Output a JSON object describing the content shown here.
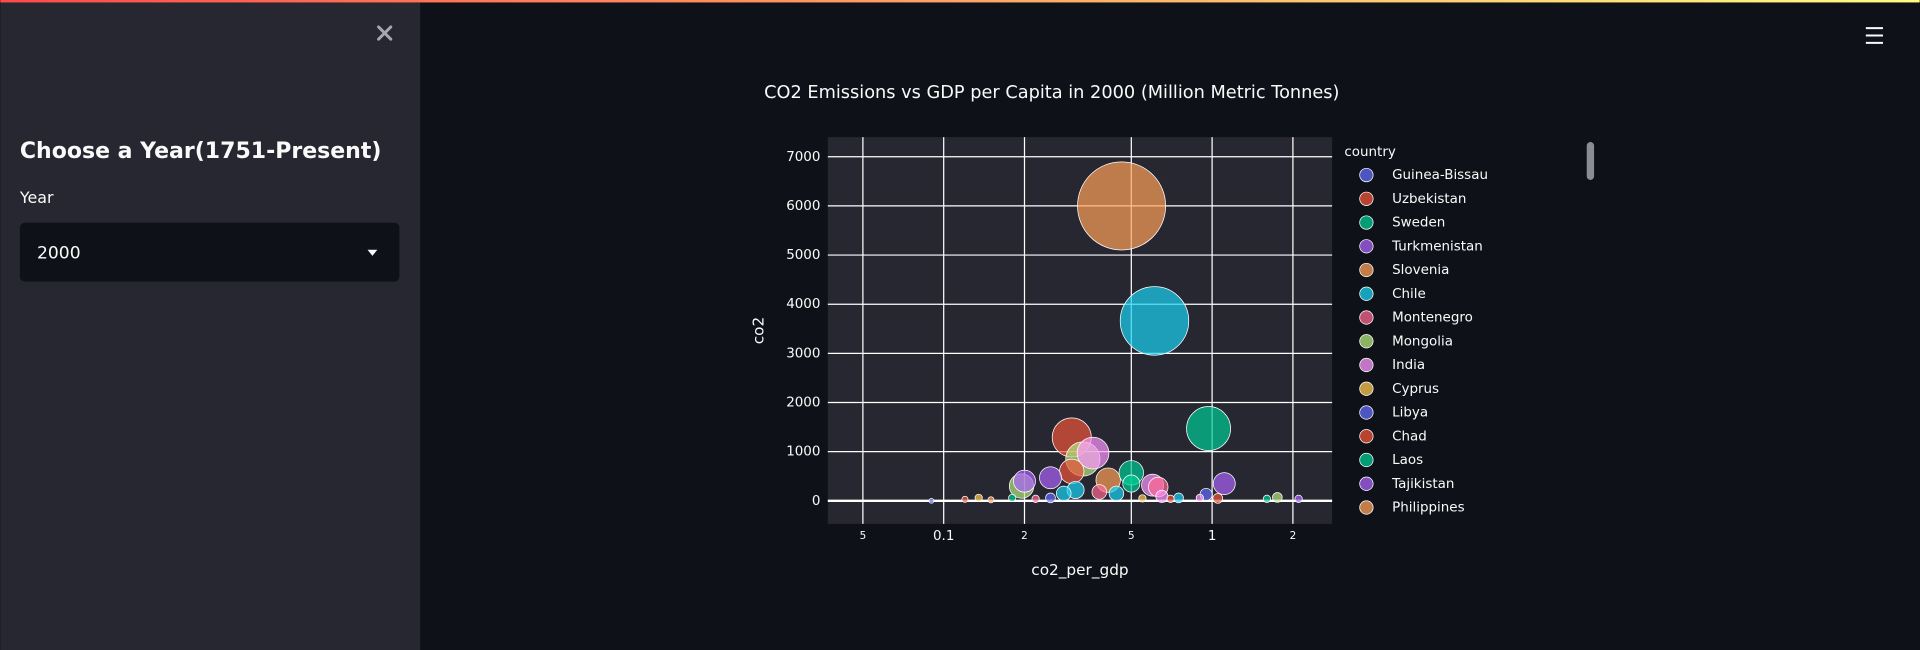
{
  "sidebar": {
    "heading": "Choose a Year(1751-Present)",
    "select_label": "Year",
    "select_value": "2000"
  },
  "chart_data": {
    "type": "scatter",
    "title": "CO2 Emissions vs GDP per Capita in 2000 (Million Metric Tonnes)",
    "x_label": "co2_per_gdp",
    "y_label": "co2",
    "x_log": true,
    "grid": true,
    "xlim": [
      0.037,
      2.8
    ],
    "xticks": [
      {
        "value": 0.05,
        "label": "5"
      },
      0.1,
      {
        "value": 0.2,
        "label": "2"
      },
      {
        "value": 0.5,
        "label": "5"
      },
      1,
      {
        "value": 2,
        "label": "2"
      }
    ],
    "ylim": [
      -470,
      7400
    ],
    "yticks": [
      0,
      1000,
      2000,
      3000,
      4000,
      5000,
      6000,
      7000
    ],
    "legend": {
      "title": "country",
      "items": [
        {
          "name": "Guinea-Bissau",
          "color": "#636efa"
        },
        {
          "name": "Uzbekistan",
          "color": "#EF553B"
        },
        {
          "name": "Sweden",
          "color": "#00cc96"
        },
        {
          "name": "Turkmenistan",
          "color": "#ab63fa"
        },
        {
          "name": "Slovenia",
          "color": "#FFA15A"
        },
        {
          "name": "Chile",
          "color": "#19d3f3"
        },
        {
          "name": "Montenegro",
          "color": "#FF6692"
        },
        {
          "name": "Mongolia",
          "color": "#B6E880"
        },
        {
          "name": "India",
          "color": "#FF97FF"
        },
        {
          "name": "Cyprus",
          "color": "#FECB52"
        },
        {
          "name": "Libya",
          "color": "#636efa"
        },
        {
          "name": "Chad",
          "color": "#EF553B"
        },
        {
          "name": "Laos",
          "color": "#00cc96"
        },
        {
          "name": "Tajikistan",
          "color": "#ab63fa"
        },
        {
          "name": "Philippines",
          "color": "#FFA15A"
        }
      ]
    },
    "x": [
      0.46,
      0.61,
      0.97,
      0.3,
      0.36,
      0.33,
      0.3,
      0.41,
      0.5,
      0.25,
      0.2,
      0.195,
      1.11,
      0.6,
      0.63,
      0.5,
      0.31,
      0.38,
      0.44,
      0.28,
      0.09,
      0.12,
      0.135,
      0.18,
      0.22,
      0.25,
      0.55,
      0.7,
      0.75,
      0.9,
      0.95,
      1.6,
      1.75,
      2.1,
      1.05,
      0.65,
      0.15
    ],
    "y": [
      6000,
      3660,
      1470,
      1290,
      970,
      850,
      600,
      420,
      570,
      470,
      400,
      300,
      350,
      320,
      280,
      350,
      220,
      180,
      150,
      150,
      0,
      30,
      60,
      60,
      40,
      60,
      50,
      40,
      60,
      60,
      130,
      40,
      70,
      40,
      50,
      90,
      20
    ],
    "sizes": [
      72,
      56,
      36,
      32,
      26,
      28,
      20,
      20,
      20,
      18,
      18,
      20,
      18,
      18,
      16,
      14,
      14,
      12,
      12,
      12,
      4,
      5,
      6,
      6,
      6,
      8,
      6,
      6,
      8,
      6,
      10,
      6,
      8,
      6,
      8,
      10,
      5
    ],
    "colors": [
      "#FFA15A",
      "#19d3f3",
      "#00cc96",
      "#EF553B",
      "#FF97FF",
      "#B6E880",
      "#EF553B",
      "#FFA15A",
      "#00cc96",
      "#ab63fa",
      "#ab63fa",
      "#B6E880",
      "#ab63fa",
      "#FF97FF",
      "#FF6692",
      "#00cc96",
      "#19d3f3",
      "#FF6692",
      "#19d3f3",
      "#19d3f3",
      "#636efa",
      "#EF553B",
      "#FECB52",
      "#00cc96",
      "#FF6692",
      "#636efa",
      "#FECB52",
      "#EF553B",
      "#19d3f3",
      "#FF97FF",
      "#636efa",
      "#00cc96",
      "#B6E880",
      "#ab63fa",
      "#EF553B",
      "#FF97FF",
      "#FFA15A"
    ]
  }
}
